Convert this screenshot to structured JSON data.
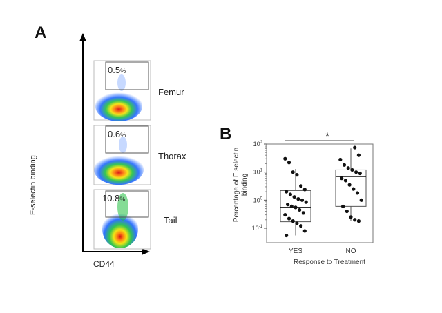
{
  "panel_a": {
    "label": "A",
    "y_axis_label": "E-selectin binding",
    "x_axis_label": "CD44",
    "plots": [
      {
        "tissue": "Femur",
        "gate_percent": "0.5",
        "gate_unit": "%"
      },
      {
        "tissue": "Thorax",
        "gate_percent": "0.6",
        "gate_unit": "%"
      },
      {
        "tissue": "Tail",
        "gate_percent": "10.8",
        "gate_unit": "%"
      }
    ]
  },
  "panel_b": {
    "label": "B",
    "significance": "*"
  },
  "chart_data": {
    "type": "box",
    "title": "",
    "xlabel": "Response to Treatment",
    "ylabel": "Percentage of E selectin binding",
    "y_scale": "log",
    "ylim": [
      0.05,
      100
    ],
    "y_ticks": [
      {
        "base": "10",
        "exp": "-1"
      },
      {
        "base": "10",
        "exp": "0"
      },
      {
        "base": "10",
        "exp": "1"
      },
      {
        "base": "10",
        "exp": "2"
      }
    ],
    "categories": [
      "YES",
      "NO"
    ],
    "groups": [
      {
        "name": "YES",
        "q1": 0.17,
        "median": 0.55,
        "q3": 2.2,
        "whisker_low": 0.05,
        "whisker_high": 13,
        "points": [
          30,
          22,
          10,
          8,
          3.2,
          2.4,
          2.0,
          1.6,
          1.3,
          1.1,
          1.0,
          0.85,
          0.7,
          0.6,
          0.55,
          0.45,
          0.35,
          0.3,
          0.22,
          0.18,
          0.15,
          0.12,
          0.08,
          0.05
        ]
      },
      {
        "name": "NO",
        "q1": 0.6,
        "median": 7,
        "q3": 12,
        "whisker_low": 0.18,
        "whisker_high": 70,
        "points": [
          75,
          40,
          28,
          18,
          14,
          12,
          10,
          9,
          6,
          5,
          3.5,
          2.5,
          1.8,
          1.0,
          0.6,
          0.4,
          0.25,
          0.2,
          0.18
        ]
      }
    ]
  }
}
